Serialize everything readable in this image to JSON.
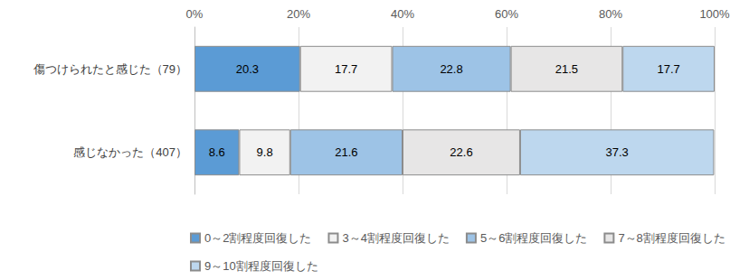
{
  "chart_data": {
    "type": "bar",
    "orientation": "horizontal",
    "stacked": true,
    "data_labels": true,
    "grid": true,
    "legend": "bottom",
    "categories": [
      "傷つけられたと感じた（79）",
      "感じなかった（407）"
    ],
    "xlim": [
      0,
      100
    ],
    "xticks": [
      {
        "value": 0,
        "label": "0%"
      },
      {
        "value": 20,
        "label": "20%"
      },
      {
        "value": 40,
        "label": "40%"
      },
      {
        "value": 60,
        "label": "60%"
      },
      {
        "value": 80,
        "label": "80%"
      },
      {
        "value": 100,
        "label": "100%"
      }
    ],
    "series": [
      {
        "name": "0～2割程度回復した",
        "color": "#5b9bd5",
        "values": [
          20.3,
          8.6
        ]
      },
      {
        "name": "3～4割程度回復した",
        "color": "#f2f2f2",
        "values": [
          17.7,
          9.8
        ]
      },
      {
        "name": "5～6割程度回復した",
        "color": "#9dc3e6",
        "values": [
          22.8,
          21.6
        ]
      },
      {
        "name": "7～8割程度回復した",
        "color": "#e7e6e6",
        "values": [
          21.5,
          22.6
        ]
      },
      {
        "name": "9～10割程度回復した",
        "color": "#bdd7ee",
        "values": [
          17.7,
          37.3
        ]
      }
    ]
  }
}
